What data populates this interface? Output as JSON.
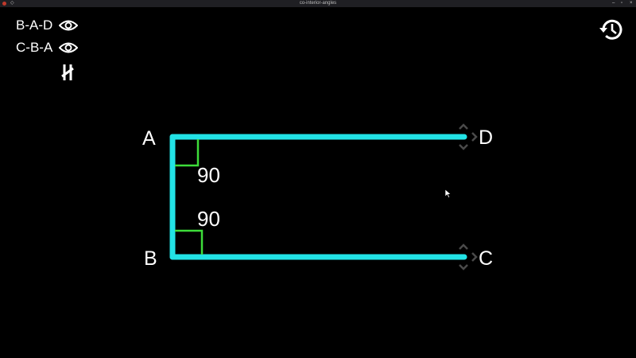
{
  "window": {
    "title": "co-interior-angles"
  },
  "panel": {
    "items": [
      {
        "label": "B-A-D",
        "icon": "eye-icon"
      },
      {
        "label": "C-B-A",
        "icon": "eye-icon"
      }
    ],
    "parallel_icon": "parallel-lines-icon",
    "history_icon": "history-icon"
  },
  "figure": {
    "points": {
      "A": "A",
      "B": "B",
      "C": "C",
      "D": "D"
    },
    "angles": [
      {
        "name": "B-A-D",
        "value": "90"
      },
      {
        "name": "C-B-A",
        "value": "90"
      }
    ]
  },
  "colors": {
    "segment": "#22e3e6",
    "angle_marker": "#3ddc3a",
    "handle": "#4a4a4a",
    "text": "#ffffff",
    "background": "#000000"
  }
}
